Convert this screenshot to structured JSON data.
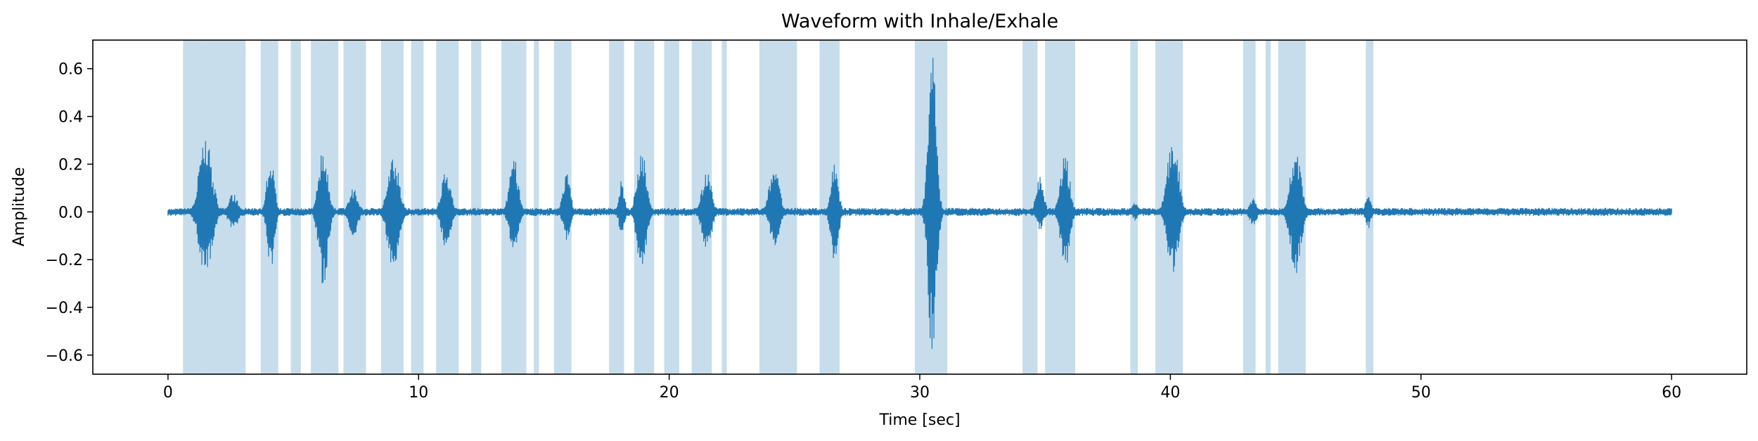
{
  "chart_data": {
    "type": "line",
    "title": "Waveform with Inhale/Exhale",
    "xlabel": "Time [sec]",
    "ylabel": "Amplitude",
    "xlim": [
      -3,
      63
    ],
    "ylim": [
      -0.68,
      0.72
    ],
    "xticks": [
      0,
      10,
      20,
      30,
      40,
      50,
      60
    ],
    "xtick_labels": [
      "0",
      "10",
      "20",
      "30",
      "40",
      "50",
      "60"
    ],
    "yticks": [
      -0.6,
      -0.4,
      -0.2,
      0.0,
      0.2,
      0.4,
      0.6
    ],
    "ytick_labels": [
      "−0.6",
      "−0.4",
      "−0.2",
      "0.0",
      "0.2",
      "0.4",
      "0.6"
    ],
    "grid": false,
    "colors": {
      "waveform": "#1f77b4",
      "shade": "#1f77b4",
      "shade_opacity": 0.25
    },
    "series": [
      {
        "style": "line",
        "duration_sec": 60,
        "baseline_noise": 0.012,
        "bursts": [
          {
            "t": 1.5,
            "peak": 0.32,
            "trough": -0.28,
            "width": 0.7
          },
          {
            "t": 2.6,
            "peak": 0.08,
            "trough": -0.08,
            "width": 0.5
          },
          {
            "t": 4.1,
            "peak": 0.25,
            "trough": -0.25,
            "width": 0.4
          },
          {
            "t": 6.2,
            "peak": 0.29,
            "trough": -0.32,
            "width": 0.5
          },
          {
            "t": 7.4,
            "peak": 0.1,
            "trough": -0.1,
            "width": 0.5
          },
          {
            "t": 9.0,
            "peak": 0.25,
            "trough": -0.26,
            "width": 0.6
          },
          {
            "t": 11.1,
            "peak": 0.18,
            "trough": -0.16,
            "width": 0.5
          },
          {
            "t": 13.8,
            "peak": 0.23,
            "trough": -0.17,
            "width": 0.5
          },
          {
            "t": 15.9,
            "peak": 0.18,
            "trough": -0.12,
            "width": 0.4
          },
          {
            "t": 18.1,
            "peak": 0.14,
            "trough": -0.1,
            "width": 0.3
          },
          {
            "t": 18.9,
            "peak": 0.28,
            "trough": -0.28,
            "width": 0.5
          },
          {
            "t": 21.5,
            "peak": 0.19,
            "trough": -0.18,
            "width": 0.5
          },
          {
            "t": 24.2,
            "peak": 0.23,
            "trough": -0.16,
            "width": 0.5
          },
          {
            "t": 26.6,
            "peak": 0.22,
            "trough": -0.23,
            "width": 0.4
          },
          {
            "t": 30.5,
            "peak": 0.66,
            "trough": -0.62,
            "width": 0.45
          },
          {
            "t": 34.8,
            "peak": 0.17,
            "trough": -0.08,
            "width": 0.4
          },
          {
            "t": 35.8,
            "peak": 0.25,
            "trough": -0.25,
            "width": 0.5
          },
          {
            "t": 38.6,
            "peak": 0.05,
            "trough": -0.04,
            "width": 0.3
          },
          {
            "t": 40.1,
            "peak": 0.34,
            "trough": -0.27,
            "width": 0.6
          },
          {
            "t": 43.3,
            "peak": 0.06,
            "trough": -0.06,
            "width": 0.4
          },
          {
            "t": 45.0,
            "peak": 0.28,
            "trough": -0.26,
            "width": 0.6
          },
          {
            "t": 47.9,
            "peak": 0.08,
            "trough": -0.07,
            "width": 0.3
          }
        ]
      }
    ],
    "shaded_spans": [
      [
        0.6,
        1.4
      ],
      [
        1.4,
        3.1
      ],
      [
        3.7,
        4.4
      ],
      [
        4.9,
        5.3
      ],
      [
        5.7,
        6.2
      ],
      [
        6.2,
        6.8
      ],
      [
        7.0,
        7.4
      ],
      [
        7.4,
        7.9
      ],
      [
        8.5,
        9.4
      ],
      [
        9.7,
        10.2
      ],
      [
        10.7,
        11.2
      ],
      [
        11.2,
        11.6
      ],
      [
        12.1,
        12.5
      ],
      [
        13.3,
        13.8
      ],
      [
        13.8,
        14.3
      ],
      [
        14.6,
        14.8
      ],
      [
        15.4,
        16.1
      ],
      [
        17.6,
        18.2
      ],
      [
        18.6,
        19.0
      ],
      [
        19.0,
        19.4
      ],
      [
        19.8,
        20.4
      ],
      [
        20.9,
        21.3
      ],
      [
        21.3,
        21.7
      ],
      [
        22.1,
        22.3
      ],
      [
        23.6,
        25.1
      ],
      [
        26.0,
        26.8
      ],
      [
        29.8,
        30.5
      ],
      [
        30.5,
        31.1
      ],
      [
        34.1,
        34.7
      ],
      [
        35.0,
        35.6
      ],
      [
        35.6,
        36.2
      ],
      [
        38.4,
        38.7
      ],
      [
        39.4,
        39.9
      ],
      [
        39.9,
        40.5
      ],
      [
        42.9,
        43.4
      ],
      [
        43.8,
        44.0
      ],
      [
        44.3,
        44.9
      ],
      [
        44.9,
        45.4
      ],
      [
        47.8,
        48.1
      ]
    ]
  }
}
